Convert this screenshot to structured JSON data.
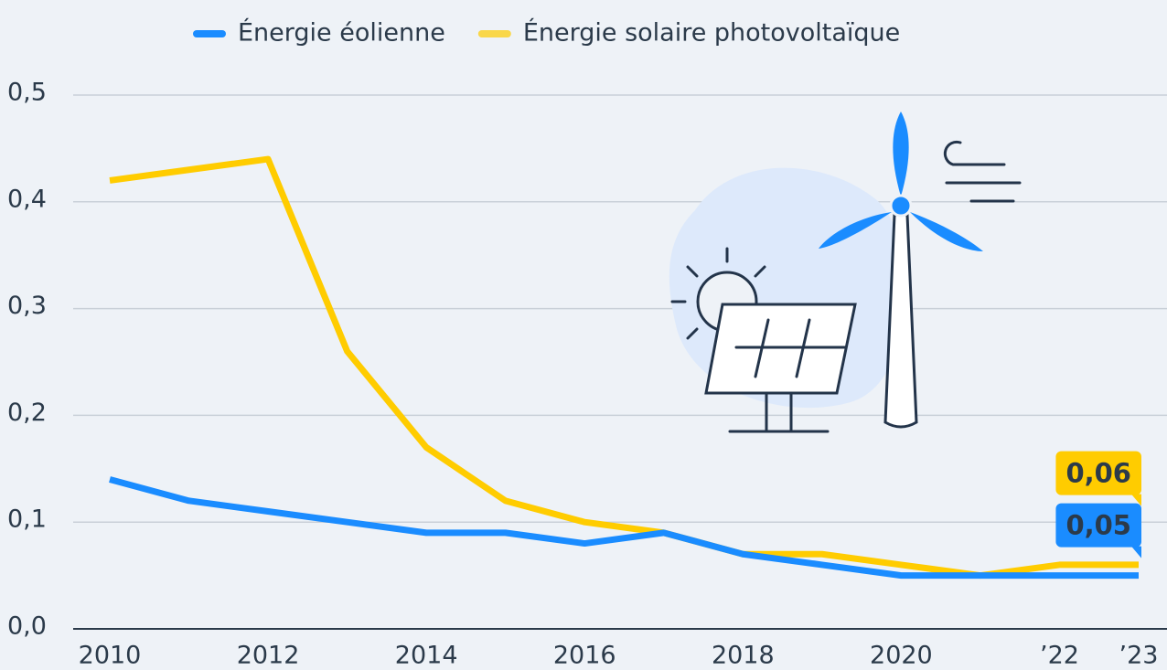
{
  "chart_data": {
    "type": "line",
    "x": [
      2010,
      2011,
      2012,
      2013,
      2014,
      2015,
      2016,
      2017,
      2018,
      2019,
      2020,
      2021,
      2022,
      2023
    ],
    "series": [
      {
        "name": "Énergie éolienne",
        "color": "#1a8cff",
        "values": [
          0.14,
          0.12,
          0.11,
          0.1,
          0.09,
          0.09,
          0.08,
          0.09,
          0.07,
          0.06,
          0.05,
          0.05,
          0.05,
          0.05
        ],
        "value_labels": [
          null,
          null,
          null,
          null,
          null,
          null,
          null,
          null,
          null,
          null,
          null,
          null,
          null,
          "0,05"
        ]
      },
      {
        "name": "Énergie solaire photovoltaïque",
        "color": "#ffcc00",
        "values": [
          0.42,
          0.43,
          0.44,
          0.26,
          0.17,
          0.12,
          0.1,
          0.09,
          0.07,
          0.07,
          0.06,
          0.05,
          0.06,
          0.06
        ],
        "value_labels": [
          null,
          null,
          null,
          null,
          null,
          null,
          null,
          null,
          null,
          null,
          null,
          null,
          null,
          "0,06"
        ]
      }
    ],
    "xlim": [
      2010,
      2023
    ],
    "xticks": [
      2010,
      2012,
      2014,
      2016,
      2018,
      2020,
      {
        "value": 2022,
        "label": "’22"
      },
      {
        "value": 2023,
        "label": "’23"
      }
    ],
    "ylim": [
      0,
      0.5
    ],
    "yticks": [
      {
        "value": 0,
        "label": "0,0"
      },
      {
        "value": 0.1,
        "label": "0,1"
      },
      {
        "value": 0.2,
        "label": "0,2"
      },
      {
        "value": 0.3,
        "label": "0,3"
      },
      {
        "value": 0.4,
        "label": "0,4"
      },
      {
        "value": 0.5,
        "label": "0,5"
      }
    ],
    "grid": true
  }
}
